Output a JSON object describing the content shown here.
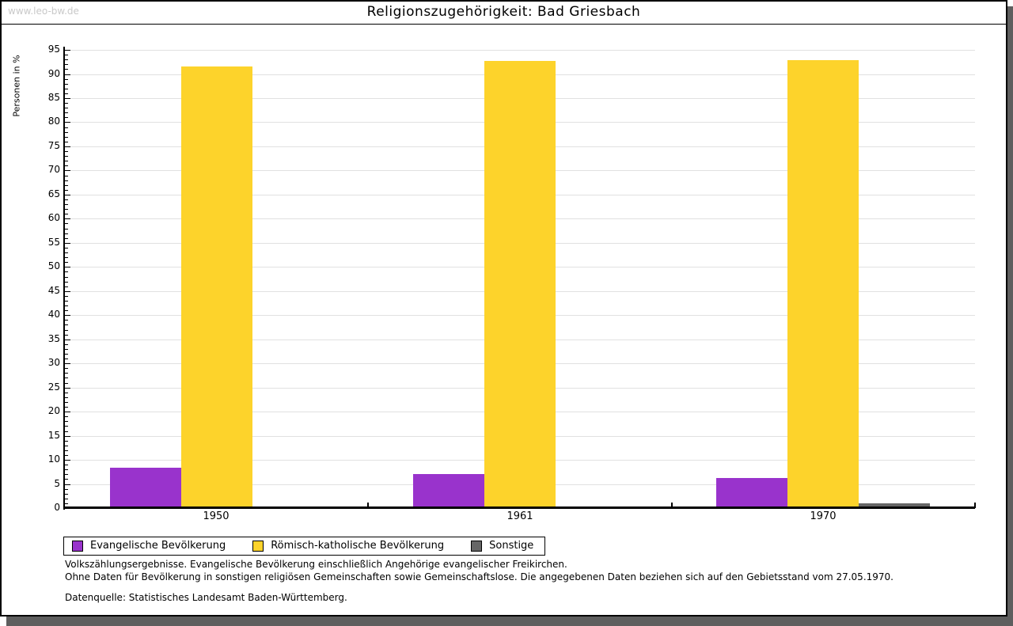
{
  "watermark": "www.leo-bw.de",
  "header": {
    "title": "Religionszugehörigkeit: Bad Griesbach"
  },
  "chart_data": {
    "type": "bar",
    "title": "Religionszugehörigkeit: Bad Griesbach",
    "ylabel": "Personen in %",
    "xlabel": "",
    "categories": [
      "1950",
      "1961",
      "1970"
    ],
    "series": [
      {
        "name": "Evangelische Bevölkerung",
        "color": "#9933cc",
        "values": [
          8.3,
          7.0,
          6.2
        ]
      },
      {
        "name": "Römisch-katholische Bevölkerung",
        "color": "#fdd32b",
        "values": [
          91.6,
          92.7,
          92.9
        ]
      },
      {
        "name": "Sonstige",
        "color": "#666666",
        "values": [
          0.1,
          0.3,
          1.0
        ]
      }
    ],
    "ylim": [
      0,
      95
    ],
    "ytick_step": 5,
    "minor_tick_step": 1,
    "grid": true,
    "grid_color": "#e1e1e1",
    "legend_position": "bottom"
  },
  "footer": {
    "note_line1": "Volkszählungsergebnisse. Evangelische Bevölkerung einschließlich Angehörige evangelischer Freikirchen.",
    "note_line2": "Ohne Daten für Bevölkerung in sonstigen religiösen Gemeinschaften sowie Gemeinschaftslose. Die angegebenen Daten beziehen sich auf den Gebietsstand vom 27.05.1970.",
    "source": "Datenquelle: Statistisches Landesamt Baden-Württemberg."
  }
}
